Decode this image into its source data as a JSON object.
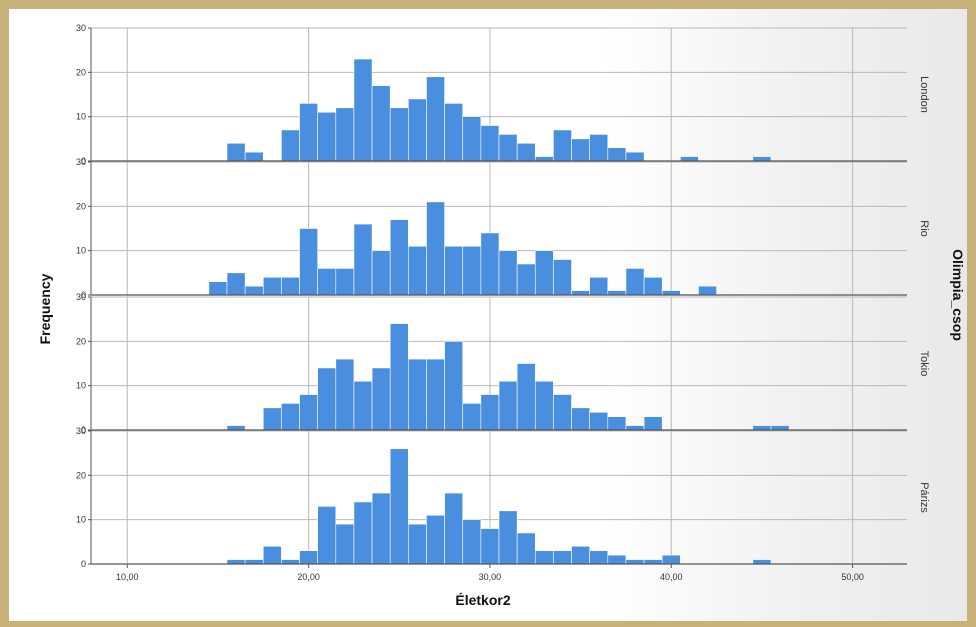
{
  "chart_data": {
    "type": "bar",
    "xlabel": "Életkor2",
    "ylabel": "Frequency",
    "facet_label": "Olimpia_csop",
    "xlim": [
      8,
      53
    ],
    "ylim": [
      0,
      30
    ],
    "bin_width": 1,
    "x_ticks": [
      10,
      20,
      30,
      40,
      50
    ],
    "x_tick_labels": [
      "10,00",
      "20,00",
      "30,00",
      "40,00",
      "50,00"
    ],
    "y_ticks": [
      0,
      10,
      20,
      30
    ],
    "bar_color": "#4a8ee0",
    "grid": true,
    "panels": [
      {
        "name": "London",
        "bins": [
          {
            "x": 16,
            "y": 4
          },
          {
            "x": 17,
            "y": 2
          },
          {
            "x": 19,
            "y": 7
          },
          {
            "x": 20,
            "y": 13
          },
          {
            "x": 21,
            "y": 11
          },
          {
            "x": 22,
            "y": 12
          },
          {
            "x": 23,
            "y": 23
          },
          {
            "x": 24,
            "y": 17
          },
          {
            "x": 25,
            "y": 12
          },
          {
            "x": 26,
            "y": 14
          },
          {
            "x": 27,
            "y": 19
          },
          {
            "x": 28,
            "y": 13
          },
          {
            "x": 29,
            "y": 10
          },
          {
            "x": 30,
            "y": 8
          },
          {
            "x": 31,
            "y": 6
          },
          {
            "x": 32,
            "y": 4
          },
          {
            "x": 33,
            "y": 1
          },
          {
            "x": 34,
            "y": 7
          },
          {
            "x": 35,
            "y": 5
          },
          {
            "x": 36,
            "y": 6
          },
          {
            "x": 37,
            "y": 3
          },
          {
            "x": 38,
            "y": 2
          },
          {
            "x": 41,
            "y": 1
          },
          {
            "x": 45,
            "y": 1
          }
        ]
      },
      {
        "name": "Rio",
        "bins": [
          {
            "x": 15,
            "y": 3
          },
          {
            "x": 16,
            "y": 5
          },
          {
            "x": 17,
            "y": 2
          },
          {
            "x": 18,
            "y": 4
          },
          {
            "x": 19,
            "y": 4
          },
          {
            "x": 20,
            "y": 15
          },
          {
            "x": 21,
            "y": 6
          },
          {
            "x": 22,
            "y": 6
          },
          {
            "x": 23,
            "y": 16
          },
          {
            "x": 24,
            "y": 10
          },
          {
            "x": 25,
            "y": 17
          },
          {
            "x": 26,
            "y": 11
          },
          {
            "x": 27,
            "y": 21
          },
          {
            "x": 28,
            "y": 11
          },
          {
            "x": 29,
            "y": 11
          },
          {
            "x": 30,
            "y": 14
          },
          {
            "x": 31,
            "y": 10
          },
          {
            "x": 32,
            "y": 7
          },
          {
            "x": 33,
            "y": 10
          },
          {
            "x": 34,
            "y": 8
          },
          {
            "x": 35,
            "y": 1
          },
          {
            "x": 36,
            "y": 4
          },
          {
            "x": 37,
            "y": 1
          },
          {
            "x": 38,
            "y": 6
          },
          {
            "x": 39,
            "y": 4
          },
          {
            "x": 40,
            "y": 1
          },
          {
            "x": 42,
            "y": 2
          }
        ]
      },
      {
        "name": "Tokio",
        "bins": [
          {
            "x": 16,
            "y": 1
          },
          {
            "x": 18,
            "y": 5
          },
          {
            "x": 19,
            "y": 6
          },
          {
            "x": 20,
            "y": 8
          },
          {
            "x": 21,
            "y": 14
          },
          {
            "x": 22,
            "y": 16
          },
          {
            "x": 23,
            "y": 11
          },
          {
            "x": 24,
            "y": 14
          },
          {
            "x": 25,
            "y": 24
          },
          {
            "x": 26,
            "y": 16
          },
          {
            "x": 27,
            "y": 16
          },
          {
            "x": 28,
            "y": 20
          },
          {
            "x": 29,
            "y": 6
          },
          {
            "x": 30,
            "y": 8
          },
          {
            "x": 31,
            "y": 11
          },
          {
            "x": 32,
            "y": 15
          },
          {
            "x": 33,
            "y": 11
          },
          {
            "x": 34,
            "y": 8
          },
          {
            "x": 35,
            "y": 5
          },
          {
            "x": 36,
            "y": 4
          },
          {
            "x": 37,
            "y": 3
          },
          {
            "x": 38,
            "y": 1
          },
          {
            "x": 39,
            "y": 3
          },
          {
            "x": 45,
            "y": 1
          },
          {
            "x": 46,
            "y": 1
          }
        ]
      },
      {
        "name": "Párizs",
        "bins": [
          {
            "x": 16,
            "y": 1
          },
          {
            "x": 17,
            "y": 1
          },
          {
            "x": 18,
            "y": 4
          },
          {
            "x": 19,
            "y": 1
          },
          {
            "x": 20,
            "y": 3
          },
          {
            "x": 21,
            "y": 13
          },
          {
            "x": 22,
            "y": 9
          },
          {
            "x": 23,
            "y": 14
          },
          {
            "x": 24,
            "y": 16
          },
          {
            "x": 25,
            "y": 26
          },
          {
            "x": 26,
            "y": 9
          },
          {
            "x": 27,
            "y": 11
          },
          {
            "x": 28,
            "y": 16
          },
          {
            "x": 29,
            "y": 10
          },
          {
            "x": 30,
            "y": 8
          },
          {
            "x": 31,
            "y": 12
          },
          {
            "x": 32,
            "y": 7
          },
          {
            "x": 33,
            "y": 3
          },
          {
            "x": 34,
            "y": 3
          },
          {
            "x": 35,
            "y": 4
          },
          {
            "x": 36,
            "y": 3
          },
          {
            "x": 37,
            "y": 2
          },
          {
            "x": 38,
            "y": 1
          },
          {
            "x": 39,
            "y": 1
          },
          {
            "x": 40,
            "y": 2
          },
          {
            "x": 45,
            "y": 1
          }
        ]
      }
    ]
  }
}
